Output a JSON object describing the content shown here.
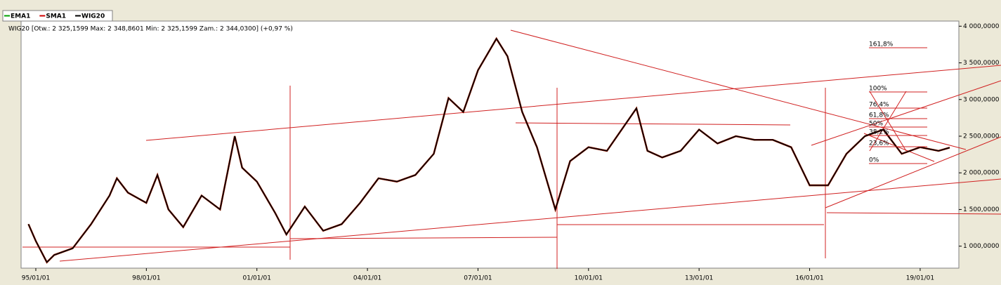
{
  "chart_data": {
    "type": "line",
    "subtitle": "WIG20 [Otw.: 2 325,1599  Max: 2 348,8601  Min: 2 325,1599  Zam.: 2 344,0300] (+0,97 %)",
    "x": [
      1994.8,
      1995.0,
      1995.3,
      1995.5,
      1996.0,
      1996.5,
      1997.0,
      1997.2,
      1997.5,
      1998.0,
      1998.3,
      1998.6,
      1999.0,
      1999.5,
      2000.0,
      2000.4,
      2000.6,
      2001.0,
      2001.5,
      2001.8,
      2002.3,
      2002.8,
      2003.3,
      2003.8,
      2004.3,
      2004.8,
      2005.3,
      2005.8,
      2006.2,
      2006.6,
      2007.0,
      2007.5,
      2007.8,
      2008.2,
      2008.6,
      2009.1,
      2009.5,
      2010.0,
      2010.5,
      2011.3,
      2011.6,
      2012.0,
      2012.5,
      2013.0,
      2013.5,
      2014.0,
      2014.5,
      2015.0,
      2015.5,
      2016.0,
      2016.5,
      2017.0,
      2017.5,
      2018.0,
      2018.5,
      2019.0,
      2019.5,
      2019.8
    ],
    "series": [
      {
        "name": "EMA1",
        "color": "#00a000",
        "values": [
          1300,
          1070,
          780,
          880,
          970,
          1300,
          1690,
          1925,
          1730,
          1590,
          1970,
          1500,
          1260,
          1690,
          1500,
          2500,
          2070,
          1880,
          1450,
          1160,
          1540,
          1210,
          1300,
          1590,
          1925,
          1880,
          1970,
          2260,
          3020,
          2830,
          3400,
          3830,
          3590,
          2830,
          2350,
          1500,
          2160,
          2350,
          2300,
          2880,
          2300,
          2210,
          2300,
          2590,
          2400,
          2500,
          2450,
          2450,
          2350,
          1830,
          1830,
          2260,
          2500,
          2590,
          2260,
          2350,
          2300,
          2344
        ]
      },
      {
        "name": "SMA1",
        "color": "#d00000",
        "values": [
          1300,
          1070,
          780,
          880,
          970,
          1300,
          1690,
          1925,
          1730,
          1590,
          1970,
          1500,
          1260,
          1690,
          1500,
          2500,
          2070,
          1880,
          1450,
          1160,
          1540,
          1210,
          1300,
          1590,
          1925,
          1880,
          1970,
          2260,
          3020,
          2830,
          3400,
          3830,
          3590,
          2830,
          2350,
          1500,
          2160,
          2350,
          2300,
          2880,
          2300,
          2210,
          2300,
          2590,
          2400,
          2500,
          2450,
          2450,
          2350,
          1830,
          1830,
          2260,
          2500,
          2590,
          2260,
          2350,
          2300,
          2344
        ]
      },
      {
        "name": "WIG20",
        "color": "#000000",
        "values": [
          1300,
          1070,
          780,
          880,
          970,
          1300,
          1690,
          1925,
          1730,
          1590,
          1970,
          1500,
          1260,
          1690,
          1500,
          2500,
          2070,
          1880,
          1450,
          1160,
          1540,
          1210,
          1300,
          1590,
          1925,
          1880,
          1970,
          2260,
          3020,
          2830,
          3400,
          3830,
          3590,
          2830,
          2350,
          1500,
          2160,
          2350,
          2300,
          2880,
          2300,
          2210,
          2300,
          2590,
          2400,
          2500,
          2450,
          2450,
          2350,
          1830,
          1830,
          2260,
          2500,
          2590,
          2260,
          2350,
          2300,
          2344
        ]
      }
    ],
    "xlim": [
      1994.6,
      2020.05
    ],
    "xticks": [
      {
        "value": 1995,
        "label": "95/01/01"
      },
      {
        "value": 1998,
        "label": "98/01/01"
      },
      {
        "value": 2001,
        "label": "01/01/01"
      },
      {
        "value": 2004,
        "label": "04/01/01"
      },
      {
        "value": 2007,
        "label": "07/01/01"
      },
      {
        "value": 2010,
        "label": "10/01/01"
      },
      {
        "value": 2013,
        "label": "13/01/01"
      },
      {
        "value": 2016,
        "label": "16/01/01"
      },
      {
        "value": 2019,
        "label": "19/01/01"
      }
    ],
    "ylim": [
      700,
      4070
    ],
    "yticks": [
      {
        "value": 1000,
        "label": "1 000,0000"
      },
      {
        "value": 1500,
        "label": "1 500,0000"
      },
      {
        "value": 2000,
        "label": "2 000,0000"
      },
      {
        "value": 2500,
        "label": "2 500,0000"
      },
      {
        "value": 3000,
        "label": "3 000,0000"
      },
      {
        "value": 3500,
        "label": "3 500,0000"
      },
      {
        "value": 4000,
        "label": "4 000,0000"
      }
    ],
    "annotations": [
      "161,8%",
      "100%",
      "76,4%",
      "61,8%",
      "50%",
      "38,2%",
      "23,6%",
      "0%"
    ]
  }
}
